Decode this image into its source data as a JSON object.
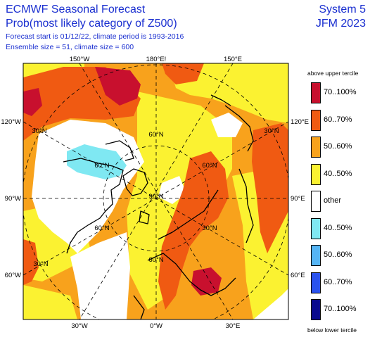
{
  "header": {
    "title_line1": "ECMWF Seasonal Forecast",
    "title_line2": "Prob(most likely category of Z500)",
    "info_line1": "Forecast start is 01/12/22, climate period is 1993-2016",
    "info_line2": "Ensemble size = 51, climate size = 600",
    "system": "System 5",
    "period": "JFM 2023"
  },
  "map": {
    "top_labels": [
      "150°W",
      "180°E!",
      "150°E"
    ],
    "bottom_labels": [
      "30°W",
      "0°W",
      "30°E"
    ],
    "left_labels": [
      "120°W",
      "90°W",
      "60°W"
    ],
    "right_labels": [
      "120°E",
      "90°E",
      "60°E"
    ],
    "inner_lat_labels": [
      "30°N",
      "60°N",
      "60°N",
      "30°N",
      "90°N",
      "60°N",
      "60°N",
      "30°N",
      "60°N",
      "30°N"
    ],
    "colors": {
      "up70": "#c8102e",
      "up60": "#f05a12",
      "up50": "#f8a21c",
      "up40": "#fbf231",
      "other": "#ffffff",
      "lo40": "#7fe8f2",
      "lo50": "#55b5f5",
      "lo60": "#2a52ee",
      "lo70": "#0a0a8e"
    }
  },
  "legend": {
    "top_title": "above upper tercile",
    "bottom_title": "below lower tercile",
    "items": [
      {
        "label": "70..100%",
        "color": "#c8102e"
      },
      {
        "label": "60..70%",
        "color": "#f05a12"
      },
      {
        "label": "50..60%",
        "color": "#f8a21c"
      },
      {
        "label": "40..50%",
        "color": "#fbf231"
      },
      {
        "label": "other",
        "color": "#ffffff"
      },
      {
        "label": "40..50%",
        "color": "#7fe8f2"
      },
      {
        "label": "50..60%",
        "color": "#55b5f5"
      },
      {
        "label": "60..70%",
        "color": "#2a52ee"
      },
      {
        "label": "70..100%",
        "color": "#0a0a8e"
      }
    ]
  }
}
